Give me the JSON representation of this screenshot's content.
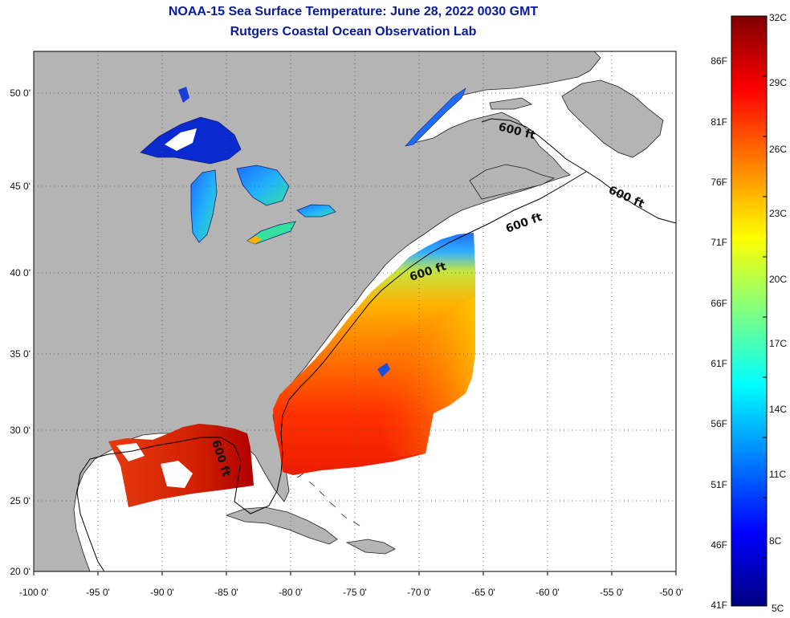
{
  "header": {
    "title": "NOAA-15 Sea Surface Temperature:  June 28, 2022 0030 GMT",
    "subtitle": "Rutgers Coastal Ocean Observation Lab"
  },
  "axes": {
    "x_ticks": [
      "-100 0'",
      "-95 0'",
      "-90 0'",
      "-85 0'",
      "-80 0'",
      "-75 0'",
      "-70 0'",
      "-65 0'",
      "-60 0'",
      "-55 0'",
      "-50 0'"
    ],
    "y_ticks": [
      "20 0'",
      "25 0'",
      "30 0'",
      "35 0'",
      "40 0'",
      "45 0'",
      "50 0'"
    ]
  },
  "contours": [
    {
      "label": "600 ft"
    },
    {
      "label": "600 ft"
    },
    {
      "label": "600 ft"
    },
    {
      "label": "600 ft"
    },
    {
      "label": "600 ft"
    }
  ],
  "colorbar": {
    "colors": [
      "#00007f",
      "#0000ff",
      "#0080ff",
      "#00ffff",
      "#80ff80",
      "#ffff00",
      "#ff8000",
      "#ff0000",
      "#7f0000"
    ],
    "celsius": [
      "32C",
      "29C",
      "26C",
      "23C",
      "20C",
      "17C",
      "14C",
      "11C",
      "8C",
      "5C"
    ],
    "fahrenheit": [
      "86F",
      "81F",
      "76F",
      "71F",
      "66F",
      "61F",
      "56F",
      "51F",
      "46F",
      "41F"
    ]
  },
  "colors": {
    "land": "#b4b4b4",
    "ocean": "#ffffff",
    "title": "#0a1a9a"
  }
}
